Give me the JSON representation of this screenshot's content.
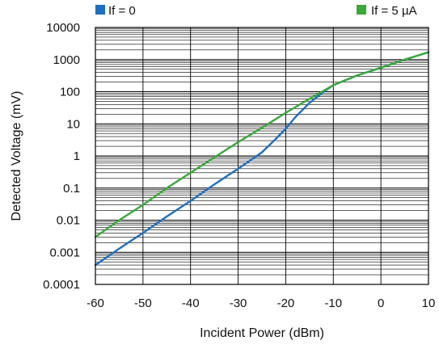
{
  "chart_data": {
    "type": "line",
    "xlabel": "Incident Power (dBm)",
    "ylabel": "Detected Voltage (mV)",
    "xlim": [
      -60,
      10
    ],
    "ylim": [
      0.0001,
      10000
    ],
    "yscale": "log",
    "grid": true,
    "x_ticks": [
      "-60",
      "-50",
      "-40",
      "-30",
      "-20",
      "-10",
      "0",
      "10"
    ],
    "y_ticks": [
      "0.0001",
      "0.001",
      "0.01",
      "0.1",
      "1",
      "10",
      "100",
      "1000",
      "10000"
    ],
    "legend_placement": "top",
    "series": [
      {
        "name": "If = 0",
        "color": "#1f6fbf",
        "x": [
          -60,
          -55,
          -50,
          -45,
          -40,
          -35,
          -30,
          -25,
          -22,
          -20,
          -18,
          -15,
          -12,
          -10,
          -5,
          0,
          5,
          10
        ],
        "y": [
          0.0004,
          0.0013,
          0.004,
          0.013,
          0.04,
          0.13,
          0.4,
          1.3,
          3.5,
          7,
          16,
          45,
          100,
          160,
          320,
          560,
          1000,
          1700
        ]
      },
      {
        "name": "If = 5 µA",
        "color": "#3aa83a",
        "x": [
          -60,
          -55,
          -50,
          -45,
          -40,
          -35,
          -30,
          -25,
          -20,
          -15,
          -10,
          -5,
          0,
          5,
          10
        ],
        "y": [
          0.003,
          0.01,
          0.03,
          0.1,
          0.3,
          0.9,
          2.7,
          7.5,
          22,
          60,
          160,
          320,
          560,
          1000,
          1700
        ]
      }
    ]
  }
}
